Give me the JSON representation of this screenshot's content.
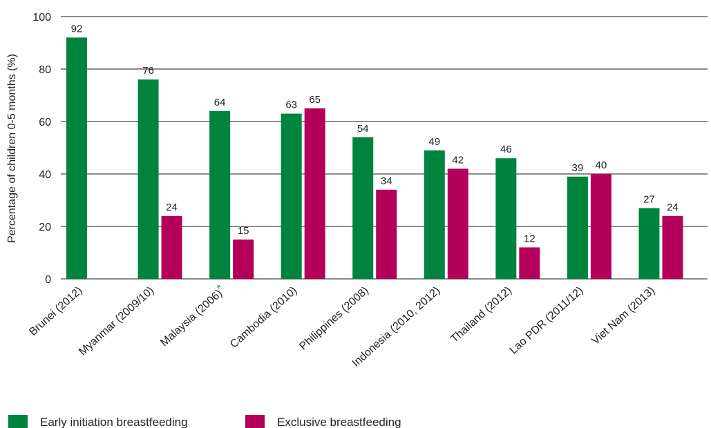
{
  "chart_data": {
    "type": "bar",
    "title": "",
    "xlabel": "",
    "ylabel": "Percentage of children 0-5 months (%)",
    "ylim": [
      0,
      100
    ],
    "yticks": [
      0,
      20,
      40,
      60,
      80,
      100
    ],
    "grid": true,
    "legend_position": "bottom-left",
    "categories": [
      "Brunei (2012)",
      "Myanmar (2009/10)",
      "Malaysia (2006)",
      "Cambodia (2010)",
      "Philippines (2008)",
      "Indonesia (2010, 2012)",
      "Thailand (2012)",
      "Lao PDR (2011/12)",
      "Viet Nam (2013)"
    ],
    "category_notes": [
      "",
      "",
      "*",
      "",
      "",
      "",
      "",
      "",
      ""
    ],
    "series": [
      {
        "name": "Early initiation breastfeeding",
        "color": "#00843d",
        "values": [
          92,
          76,
          64,
          63,
          54,
          49,
          46,
          39,
          27
        ]
      },
      {
        "name": "Exclusive breastfeeding",
        "color": "#b5005b",
        "values": [
          null,
          24,
          15,
          65,
          34,
          42,
          12,
          40,
          24
        ]
      }
    ],
    "note_color": "#00a651"
  }
}
